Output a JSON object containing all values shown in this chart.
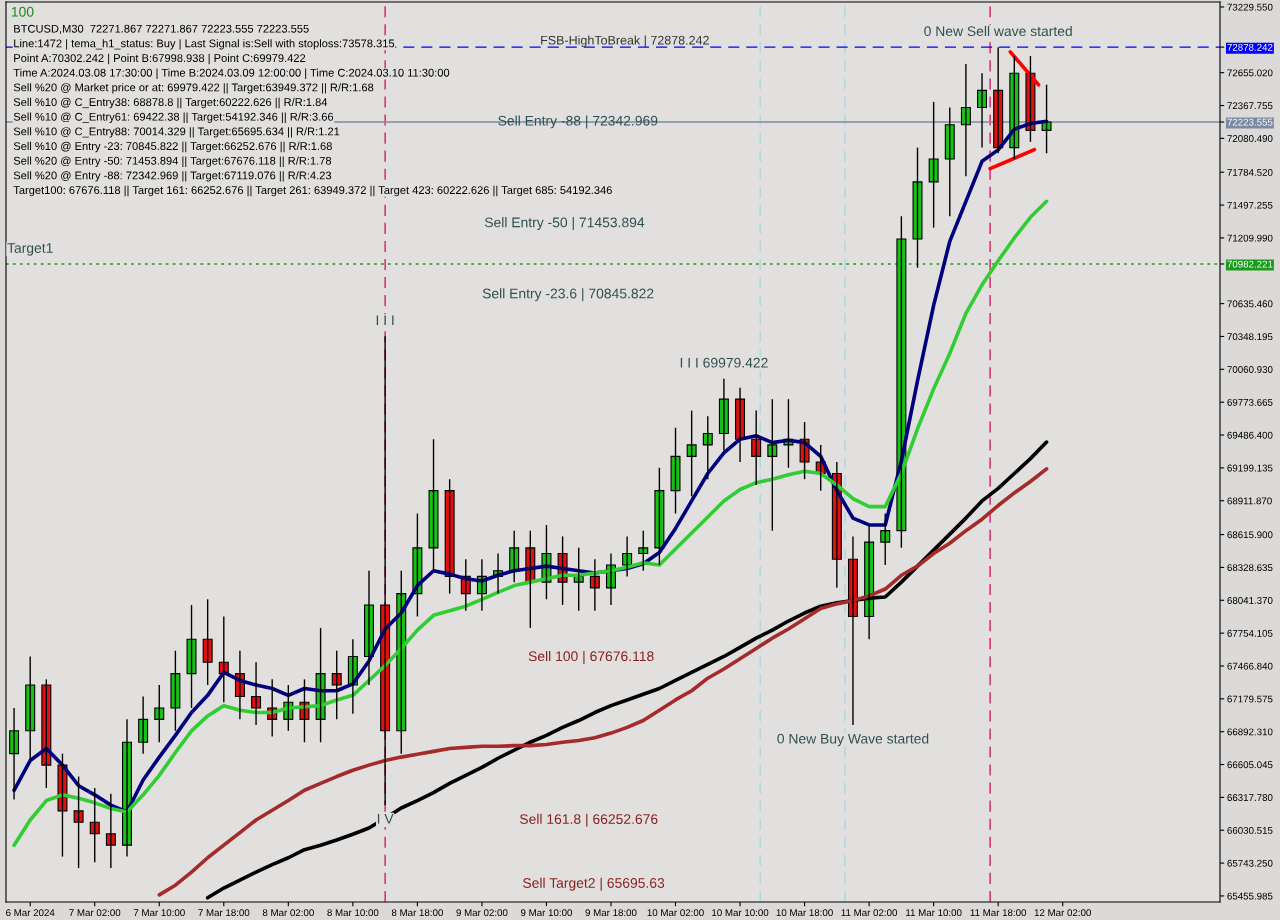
{
  "chart_data": {
    "type": "candlestick",
    "x": [
      "2024-03-06T16:00",
      "2024-03-06T18:00",
      "2024-03-06T20:00",
      "2024-03-06T22:00",
      "2024-03-07T00:00",
      "2024-03-07T02:00",
      "2024-03-07T04:00",
      "2024-03-07T06:00",
      "2024-03-07T08:00",
      "2024-03-07T10:00",
      "2024-03-07T12:00",
      "2024-03-07T14:00",
      "2024-03-07T16:00",
      "2024-03-07T18:00",
      "2024-03-07T20:00",
      "2024-03-07T22:00",
      "2024-03-08T00:00",
      "2024-03-08T02:00",
      "2024-03-08T04:00",
      "2024-03-08T06:00",
      "2024-03-08T08:00",
      "2024-03-08T10:00",
      "2024-03-08T12:00",
      "2024-03-08T14:00",
      "2024-03-08T16:00",
      "2024-03-08T18:00",
      "2024-03-08T20:00",
      "2024-03-08T22:00",
      "2024-03-09T00:00",
      "2024-03-09T02:00",
      "2024-03-09T04:00",
      "2024-03-09T06:00",
      "2024-03-09T08:00",
      "2024-03-09T10:00",
      "2024-03-09T12:00",
      "2024-03-09T14:00",
      "2024-03-09T16:00",
      "2024-03-09T18:00",
      "2024-03-09T20:00",
      "2024-03-09T22:00",
      "2024-03-10T00:00",
      "2024-03-10T02:00",
      "2024-03-10T04:00",
      "2024-03-10T06:00",
      "2024-03-10T08:00",
      "2024-03-10T10:00",
      "2024-03-10T12:00",
      "2024-03-10T14:00",
      "2024-03-10T16:00",
      "2024-03-10T18:00",
      "2024-03-10T20:00",
      "2024-03-10T22:00",
      "2024-03-11T00:00",
      "2024-03-11T02:00",
      "2024-03-11T04:00",
      "2024-03-11T06:00",
      "2024-03-11T08:00",
      "2024-03-11T10:00",
      "2024-03-11T12:00",
      "2024-03-11T14:00",
      "2024-03-11T16:00",
      "2024-03-11T18:00",
      "2024-03-11T20:00",
      "2024-03-11T22:00",
      "2024-03-12T00:00"
    ],
    "ohlc": [
      [
        66700,
        67100,
        66300,
        66900
      ],
      [
        66900,
        67550,
        66650,
        67300
      ],
      [
        67300,
        67350,
        66400,
        66600
      ],
      [
        66600,
        66700,
        65800,
        66200
      ],
      [
        66200,
        66500,
        65700,
        66100
      ],
      [
        66100,
        66400,
        65750,
        66000
      ],
      [
        66000,
        66350,
        65700,
        65900
      ],
      [
        65900,
        67000,
        65800,
        66800
      ],
      [
        66800,
        67200,
        66700,
        67000
      ],
      [
        67000,
        67300,
        66800,
        67100
      ],
      [
        67100,
        67600,
        66900,
        67400
      ],
      [
        67400,
        68000,
        67100,
        67700
      ],
      [
        67700,
        68050,
        67300,
        67500
      ],
      [
        67500,
        67900,
        67150,
        67400
      ],
      [
        67400,
        67600,
        67000,
        67200
      ],
      [
        67200,
        67500,
        66950,
        67100
      ],
      [
        67100,
        67350,
        66850,
        67000
      ],
      [
        67000,
        67300,
        66900,
        67150
      ],
      [
        67150,
        67350,
        66800,
        67000
      ],
      [
        67000,
        67800,
        66800,
        67400
      ],
      [
        67400,
        67600,
        67000,
        67300
      ],
      [
        67300,
        67700,
        67050,
        67550
      ],
      [
        67550,
        68300,
        67300,
        68000
      ],
      [
        68000,
        70350,
        66250,
        66900
      ],
      [
        66900,
        68300,
        66700,
        68100
      ],
      [
        68100,
        68800,
        67900,
        68500
      ],
      [
        68500,
        69450,
        68300,
        69000
      ],
      [
        69000,
        69100,
        68100,
        68250
      ],
      [
        68250,
        68400,
        67950,
        68100
      ],
      [
        68100,
        68400,
        67950,
        68250
      ],
      [
        68250,
        68450,
        68100,
        68300
      ],
      [
        68300,
        68650,
        68200,
        68500
      ],
      [
        68500,
        68650,
        67800,
        68200
      ],
      [
        68200,
        68700,
        68050,
        68450
      ],
      [
        68450,
        68600,
        68000,
        68200
      ],
      [
        68200,
        68500,
        67950,
        68250
      ],
      [
        68250,
        68400,
        67950,
        68150
      ],
      [
        68150,
        68450,
        68000,
        68350
      ],
      [
        68350,
        68600,
        68250,
        68450
      ],
      [
        68450,
        68650,
        68300,
        68500
      ],
      [
        68500,
        69200,
        68350,
        69000
      ],
      [
        69000,
        69550,
        68800,
        69300
      ],
      [
        69300,
        69700,
        68950,
        69400
      ],
      [
        69400,
        69650,
        69100,
        69500
      ],
      [
        69500,
        69979,
        69350,
        69800
      ],
      [
        69800,
        69900,
        69250,
        69450
      ],
      [
        69450,
        69700,
        69050,
        69300
      ],
      [
        69300,
        69800,
        68650,
        69400
      ],
      [
        69400,
        69800,
        69200,
        69450
      ],
      [
        69450,
        69600,
        69100,
        69250
      ],
      [
        69250,
        69400,
        69000,
        69150
      ],
      [
        69150,
        69250,
        68150,
        68400
      ],
      [
        68400,
        68600,
        66950,
        67900
      ],
      [
        67900,
        68700,
        67700,
        68550
      ],
      [
        68550,
        68800,
        68350,
        68650
      ],
      [
        68650,
        71400,
        68500,
        71200
      ],
      [
        71200,
        72000,
        70950,
        71700
      ],
      [
        71700,
        72400,
        71300,
        71900
      ],
      [
        71900,
        72350,
        71400,
        72200
      ],
      [
        72200,
        72730,
        71750,
        72350
      ],
      [
        72350,
        72650,
        72000,
        72500
      ],
      [
        72500,
        72878,
        71950,
        72000
      ],
      [
        72000,
        72800,
        71900,
        72650
      ],
      [
        72650,
        72800,
        72050,
        72150
      ],
      [
        72150,
        72550,
        71950,
        72224
      ]
    ],
    "series": [
      {
        "type": "line",
        "color": "#00007f",
        "values": [
          66380,
          66640,
          66745,
          66600,
          66420,
          66340,
          66250,
          66190,
          66470,
          66670,
          66860,
          67060,
          67210,
          67410,
          67340,
          67300,
          67270,
          67210,
          67270,
          67250,
          67250,
          67310,
          67510,
          67790,
          67930,
          68170,
          68300,
          68270,
          68230,
          68210,
          68260,
          68300,
          68320,
          68340,
          68320,
          68300,
          68280,
          68300,
          68320,
          68360,
          68460,
          68670,
          68910,
          69150,
          69330,
          69450,
          69480,
          69420,
          69440,
          69420,
          69300,
          69000,
          68760,
          68700,
          68700,
          69260,
          69960,
          70620,
          71180,
          71530,
          71880,
          71980,
          72160,
          72210,
          72230
        ]
      },
      {
        "type": "line",
        "color": "#32cd32",
        "values": [
          65900,
          66120,
          66290,
          66340,
          66310,
          66270,
          66220,
          66190,
          66340,
          66510,
          66710,
          66900,
          67030,
          67120,
          67080,
          67060,
          67060,
          67100,
          67110,
          67120,
          67170,
          67210,
          67340,
          67470,
          67620,
          67780,
          67910,
          67950,
          67990,
          68050,
          68110,
          68170,
          68200,
          68230,
          68260,
          68260,
          68280,
          68300,
          68330,
          68370,
          68350,
          68490,
          68630,
          68770,
          68910,
          69010,
          69070,
          69100,
          69140,
          69170,
          69150,
          69050,
          68930,
          68860,
          68860,
          69150,
          69540,
          69890,
          70200,
          70550,
          70800,
          71010,
          71210,
          71390,
          71530
        ]
      },
      {
        "type": "line",
        "color": "#000000",
        "values": [
          null,
          null,
          null,
          null,
          null,
          null,
          null,
          null,
          null,
          null,
          null,
          null,
          65440,
          65525,
          65595,
          65665,
          65730,
          65790,
          65860,
          65900,
          65945,
          65995,
          66050,
          66135,
          66225,
          66290,
          66360,
          66440,
          66510,
          66580,
          66660,
          66730,
          66800,
          66860,
          66930,
          66990,
          67060,
          67120,
          67170,
          67220,
          67270,
          67340,
          67410,
          67480,
          67550,
          67630,
          67710,
          67780,
          67860,
          67930,
          67990,
          68020,
          68040,
          68060,
          68070,
          68200,
          68340,
          68480,
          68620,
          68760,
          68910,
          69020,
          69150,
          69280,
          69425
        ]
      },
      {
        "type": "line",
        "color": "#a52a2a",
        "values": [
          null,
          null,
          null,
          null,
          null,
          null,
          null,
          null,
          null,
          65465,
          65550,
          65665,
          65790,
          65900,
          66010,
          66120,
          66205,
          66290,
          66380,
          66440,
          66500,
          66555,
          66600,
          66640,
          66670,
          66695,
          66720,
          66745,
          66755,
          66765,
          66765,
          66770,
          66770,
          66780,
          66800,
          66815,
          66840,
          66880,
          66930,
          66990,
          67080,
          67170,
          67250,
          67360,
          67440,
          67530,
          67620,
          67710,
          67790,
          67880,
          67970,
          68010,
          68040,
          68080,
          68140,
          68260,
          68340,
          68450,
          68540,
          68650,
          68750,
          68870,
          68980,
          69080,
          69190
        ]
      },
      {
        "type": "line",
        "color": "#ff0000",
        "x": [
          "2024-03-11T19:30",
          "2024-03-11T23:00"
        ],
        "values": [
          72837,
          72549
        ]
      },
      {
        "type": "line",
        "color": "#ff0000",
        "x": [
          "2024-03-11T17:00",
          "2024-03-11T22:30"
        ],
        "values": [
          71816,
          71982
        ]
      }
    ],
    "xlim": [
      "2024-03-06T15:00",
      "2024-03-12T21:30"
    ],
    "xticks": [
      {
        "value": "2024-03-06T18:00",
        "label": "6 Mar 2024"
      },
      {
        "value": "2024-03-07T02:00",
        "label": "7 Mar 02:00"
      },
      {
        "value": "2024-03-07T10:00",
        "label": "7 Mar 10:00"
      },
      {
        "value": "2024-03-07T18:00",
        "label": "7 Mar 18:00"
      },
      {
        "value": "2024-03-08T02:00",
        "label": "8 Mar 02:00"
      },
      {
        "value": "2024-03-08T10:00",
        "label": "8 Mar 10:00"
      },
      {
        "value": "2024-03-08T18:00",
        "label": "8 Mar 18:00"
      },
      {
        "value": "2024-03-09T02:00",
        "label": "9 Mar 02:00"
      },
      {
        "value": "2024-03-09T10:00",
        "label": "9 Mar 10:00"
      },
      {
        "value": "2024-03-09T18:00",
        "label": "9 Mar 18:00"
      },
      {
        "value": "2024-03-10T02:00",
        "label": "10 Mar 02:00"
      },
      {
        "value": "2024-03-10T10:00",
        "label": "10 Mar 10:00"
      },
      {
        "value": "2024-03-10T18:00",
        "label": "10 Mar 18:00"
      },
      {
        "value": "2024-03-11T02:00",
        "label": "11 Mar 02:00"
      },
      {
        "value": "2024-03-11T10:00",
        "label": "11 Mar 10:00"
      },
      {
        "value": "2024-03-11T18:00",
        "label": "11 Mar 18:00"
      },
      {
        "value": "2024-03-12T02:00",
        "label": "12 Mar 02:00"
      }
    ],
    "ylim": [
      65403,
      73273
    ],
    "yticks": [
      {
        "value": 73229.55,
        "label": "73229.550"
      },
      {
        "value": 72878.242,
        "label": "72878.242"
      },
      {
        "value": 72655.02,
        "label": "72655.020"
      },
      {
        "value": 72367.755,
        "label": "72367.755"
      },
      {
        "value": 72223.555,
        "label": "72223.555"
      },
      {
        "value": 72080.49,
        "label": "72080.490"
      },
      {
        "value": 71784.52,
        "label": "71784.520"
      },
      {
        "value": 71497.255,
        "label": "71497.255"
      },
      {
        "value": 71209.99,
        "label": "71209.990"
      },
      {
        "value": 70982.221,
        "label": "70982.221"
      },
      {
        "value": 70635.46,
        "label": "70635.460"
      },
      {
        "value": 70348.195,
        "label": "70348.195"
      },
      {
        "value": 70060.93,
        "label": "70060.930"
      },
      {
        "value": 69773.665,
        "label": "69773.665"
      },
      {
        "value": 69486.4,
        "label": "69486.400"
      },
      {
        "value": 69199.135,
        "label": "69199.135"
      },
      {
        "value": 68911.87,
        "label": "68911.870"
      },
      {
        "value": 68615.9,
        "label": "68615.900"
      },
      {
        "value": 68328.635,
        "label": "68328.635"
      },
      {
        "value": 68041.37,
        "label": "68041.370"
      },
      {
        "value": 67754.105,
        "label": "67754.105"
      },
      {
        "value": 67466.84,
        "label": "67466.840"
      },
      {
        "value": 67179.575,
        "label": "67179.575"
      },
      {
        "value": 66892.31,
        "label": "66892.310"
      },
      {
        "value": 66605.045,
        "label": "66605.045"
      },
      {
        "value": 66317.78,
        "label": "66317.780"
      },
      {
        "value": 66030.515,
        "label": "66030.515"
      },
      {
        "value": 65743.25,
        "label": "65743.250"
      },
      {
        "value": 65455.985,
        "label": "65455.985"
      }
    ],
    "ref_lines": [
      {
        "axis": "y",
        "value": 72878.242,
        "label": "FSB-HighToBreak | 72878.242",
        "color": "#0000ff",
        "line_style": "dashed"
      },
      {
        "axis": "y",
        "value": 70982.221,
        "color": "#1a9a1a",
        "line_style": "dotted"
      },
      {
        "axis": "y",
        "value": 72223.555,
        "color": "#7a8aa0",
        "line_style": "solid"
      },
      {
        "axis": "x",
        "value": "2024-03-08T14:00",
        "color": "#d0206a",
        "line_style": "dashed"
      },
      {
        "axis": "x",
        "value": "2024-03-11T17:00",
        "color": "#d0206a",
        "line_style": "dashed"
      },
      {
        "axis": "x",
        "value": "2024-03-10T12:30",
        "color": "#a8d8e0",
        "line_style": "dashed"
      },
      {
        "axis": "x",
        "value": "2024-03-10T23:00",
        "color": "#a8d8e0",
        "line_style": "dashed"
      }
    ],
    "annotations": [
      "100",
      "Sell Entry -88 | 72342.969",
      "Sell Entry -50 | 71453.894",
      "Sell Entry -23.6 | 70845.822",
      "Sell 100 | 67676.118",
      "Sell 161.8 | 66252.676",
      "Sell Target2 | 65695.63",
      "BTCUSD,M30  72271.867 72271.867 72223.555 72223.555",
      "Line:1472 | tema_h1_status: Buy | Last Signal is:Sell with stoploss:73578.315",
      "Point A:70302.242 | Point B:67998.938 | Point C:69979.422",
      "Time A:2024.03.08 17:30:00 | Time B:2024.03.09 12:00:00 | Time C:2024.03.10 11:30:00",
      "Sell %20 @ Market price or at: 69979.422 || Target:63949.372 || R/R:1.68",
      "Sell %10 @ C_Entry38: 68878.8 || Target:60222.626 || R/R:1.84",
      "Sell %10 @ C_Entry61: 69422.38 || Target:54192.346 || R/R:3.66",
      "Sell %10 @ C_Entry88: 70014.329 || Target:65695.634 || R/R:1.21",
      "Sell %10 @ Entry -23: 70845.822 || Target:66252.676 || R/R:1.68",
      "Sell %20 @ Entry -50: 71453.894 || Target:67676.118 || R/R:1.78",
      "Sell %20 @ Entry -88: 72342.969 || Target:67119.076 || R/R:4.23",
      "Target100: 67676.118 || Target 161: 66252.676 || Target 261: 63949.372 || Target 423: 60222.626 || Target 685: 54192.346",
      {
        "text": "0 New Sell wave started",
        "x": "2024-03-11T18:00",
        "y": 72878
      },
      {
        "text": "Target1",
        "x": "2024-03-06T18:00",
        "y": 70982.221
      },
      {
        "text": "I I I 69979.422",
        "x": "2024-03-10T08:00",
        "y": 69979
      },
      {
        "text": "I I I",
        "x": "2024-03-08T14:00",
        "y": 70350
      },
      {
        "text": "0 New Buy Wave started",
        "x": "2024-03-11T00:00",
        "y": 66950
      },
      {
        "text": "I V",
        "x": "2024-03-08T14:00",
        "y": 66250
      }
    ],
    "grid": false
  }
}
